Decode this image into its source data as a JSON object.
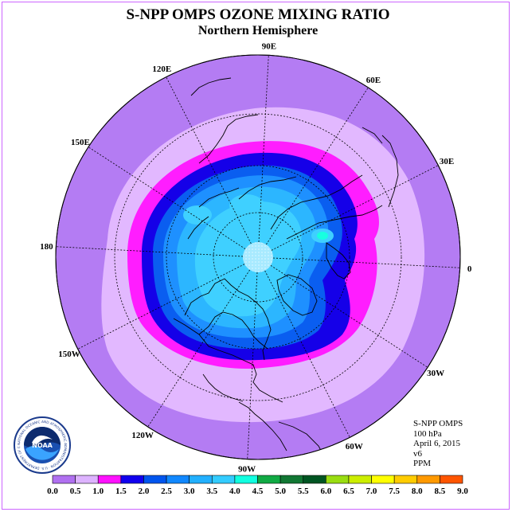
{
  "title": "S-NPP OMPS OZONE MIXING RATIO",
  "subtitle": "Northern Hemisphere",
  "info": {
    "instrument": "S-NPP OMPS",
    "level": "100 hPa",
    "date": "April 6, 2015",
    "version": "v6",
    "units": "PPM"
  },
  "longitude_labels": [
    {
      "text": "0",
      "lon": 0
    },
    {
      "text": "30E",
      "lon": 30
    },
    {
      "text": "60E",
      "lon": 60
    },
    {
      "text": "90E",
      "lon": 90
    },
    {
      "text": "120E",
      "lon": 120
    },
    {
      "text": "150E",
      "lon": 150
    },
    {
      "text": "180",
      "lon": 180
    },
    {
      "text": "150W",
      "lon": -150
    },
    {
      "text": "120W",
      "lon": -120
    },
    {
      "text": "90W",
      "lon": -90
    },
    {
      "text": "60W",
      "lon": -60
    },
    {
      "text": "30W",
      "lon": -30
    }
  ],
  "colorbar": {
    "labels": [
      "0.0",
      "0.5",
      "1.0",
      "1.5",
      "2.0",
      "2.5",
      "3.0",
      "3.5",
      "4.0",
      "4.5",
      "5.0",
      "5.5",
      "6.0",
      "6.5",
      "7.0",
      "7.5",
      "8.0",
      "8.5",
      "9.0"
    ],
    "colors": [
      "#b070f0",
      "#ddb3ff",
      "#ff11ff",
      "#1100ee",
      "#0055ee",
      "#1188ff",
      "#22b0ff",
      "#33ccff",
      "#11ffe0",
      "#11aa44",
      "#117733",
      "#005522",
      "#99dd11",
      "#ccee00",
      "#ffff00",
      "#ffcc00",
      "#ff9900",
      "#ff5500",
      "#ee0000",
      "#885533"
    ]
  },
  "logo": {
    "text": "NOAA",
    "ring_text": "NATIONAL OCEANIC AND ATMOSPHERIC ADMINISTRATION · U.S. DEPARTMENT OF COMMERCE"
  },
  "colors": {
    "outer_disc": "#b47cf3",
    "band_lilac": "#e2b8ff",
    "band_magenta": "#ff1dff",
    "band_darkblue": "#1500e8",
    "band_blue": "#0a5ef0",
    "band_mid": "#1e90ff",
    "band_light": "#2cb6ff",
    "band_cyan": "#3fd0ff",
    "spot_teal": "#17ffe0",
    "pole_cap": "#ffffff"
  }
}
